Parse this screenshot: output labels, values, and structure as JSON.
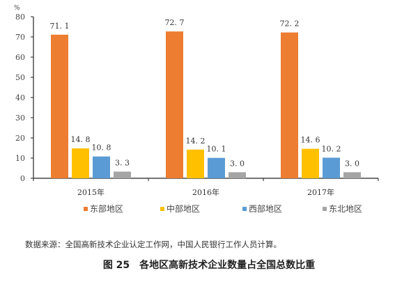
{
  "chart_data": {
    "type": "bar",
    "title": "图 25　各地区高新技术企业数量占全国总数比重",
    "xlabel": "",
    "ylabel": "%",
    "ylim": [
      0,
      80
    ],
    "yticks": [
      0,
      10,
      20,
      30,
      40,
      50,
      60,
      70,
      80
    ],
    "grid": false,
    "legend_position": "bottom",
    "categories": [
      "2015年",
      "2016年",
      "2017年"
    ],
    "series": [
      {
        "name": "东部地区",
        "color": "#ED7D31",
        "values": [
          71.1,
          72.7,
          72.2
        ],
        "labels": [
          "71. 1",
          "72. 7",
          "72. 2"
        ]
      },
      {
        "name": "中部地区",
        "color": "#FFC000",
        "values": [
          14.8,
          14.2,
          14.6
        ],
        "labels": [
          "14. 8",
          "14. 2",
          "14. 6"
        ]
      },
      {
        "name": "西部地区",
        "color": "#5B9BD5",
        "values": [
          10.8,
          10.1,
          10.2
        ],
        "labels": [
          "10. 8",
          "10. 1",
          "10. 2"
        ]
      },
      {
        "name": "东北地区",
        "color": "#A5A5A5",
        "values": [
          3.3,
          3.0,
          3.0
        ],
        "labels": [
          "3. 3",
          "3. 0",
          "3. 0"
        ]
      }
    ]
  },
  "footer": {
    "source": "数据来源：全国高新技术企业认定工作网，中国人民银行工作人员计算。",
    "caption": "图 25　各地区高新技术企业数量占全国总数比重"
  }
}
